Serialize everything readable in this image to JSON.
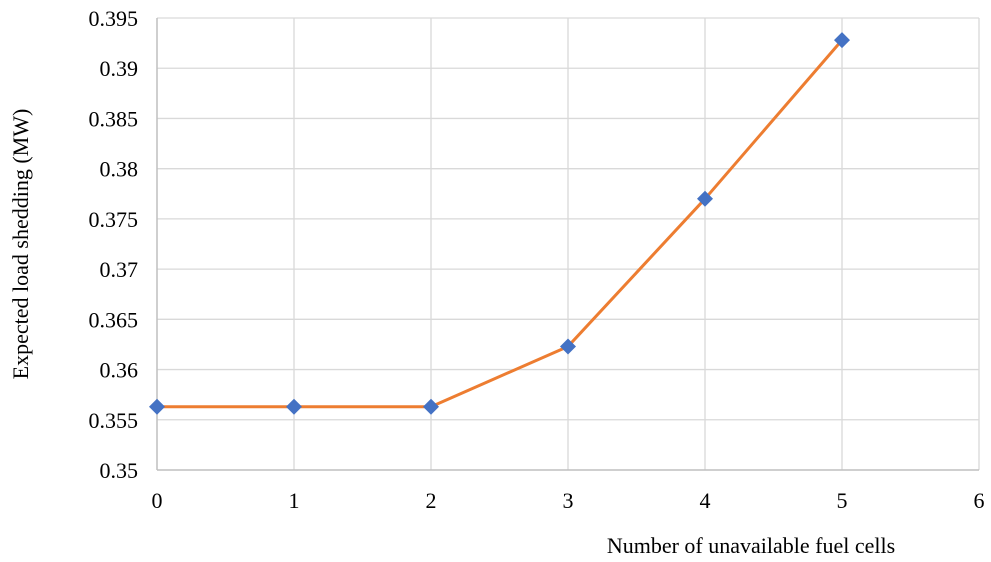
{
  "chart_data": {
    "type": "line",
    "title": "",
    "xlabel": "Number of unavailable fuel cells",
    "ylabel": "Expected load shedding (MW)",
    "xlim": [
      0,
      6
    ],
    "ylim": [
      0.35,
      0.395
    ],
    "x_ticks": [
      "0",
      "1",
      "2",
      "3",
      "4",
      "5",
      "6"
    ],
    "y_ticks": [
      "0.35",
      "0.355",
      "0.36",
      "0.365",
      "0.37",
      "0.375",
      "0.38",
      "0.385",
      "0.39",
      "0.395"
    ],
    "grid": true,
    "legend": "none",
    "series": [
      {
        "x": [
          0,
          1,
          2,
          3,
          4,
          5
        ],
        "y": [
          0.3563,
          0.3563,
          0.3563,
          0.3623,
          0.377,
          0.3928
        ],
        "line_color": "#ED7D31",
        "marker": "diamond",
        "marker_color": "#4472C4"
      }
    ],
    "colors": {
      "grid": "#D9D9D9",
      "axis": "#BFBFBF",
      "line": "#ED7D31",
      "marker": "#4472C4"
    }
  }
}
